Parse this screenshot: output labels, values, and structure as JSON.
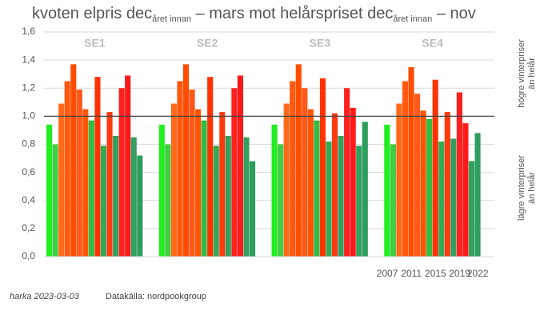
{
  "chart_data": {
    "type": "grouped-bar",
    "title": [
      "kvoten elpris dec",
      "året innan",
      " – mars mot helårspriset dec",
      "året innan",
      " – nov"
    ],
    "groups": [
      "SE1",
      "SE2",
      "SE3",
      "SE4"
    ],
    "x_labels": [
      "2007",
      null,
      null,
      null,
      "2011",
      null,
      null,
      null,
      "2015",
      null,
      null,
      null,
      "2019",
      null,
      null,
      "2022"
    ],
    "colors": [
      "#22ee22",
      "#44cc44",
      "#ff6a1a",
      "#ff5a10",
      "#ff4d00",
      "#ff5a1a",
      "#ff5500",
      "#33bb44",
      "#ff3300",
      "#33aa55",
      "#ff3a10",
      "#33a060",
      "#ff2020",
      "#ff1a1a",
      "#33a060",
      "#2e9e5e"
    ],
    "series": [
      {
        "name": "SE1",
        "values": [
          0.94,
          0.8,
          1.09,
          1.25,
          1.37,
          1.19,
          1.05,
          0.97,
          1.28,
          0.79,
          1.03,
          0.86,
          1.2,
          1.29,
          0.85,
          0.72
        ]
      },
      {
        "name": "SE2",
        "values": [
          0.94,
          0.8,
          1.09,
          1.25,
          1.37,
          1.19,
          1.05,
          0.97,
          1.28,
          0.79,
          1.03,
          0.86,
          1.2,
          1.29,
          0.85,
          0.68
        ]
      },
      {
        "name": "SE3",
        "values": [
          0.94,
          0.8,
          1.09,
          1.25,
          1.37,
          1.2,
          1.05,
          0.97,
          1.27,
          0.82,
          1.02,
          0.86,
          1.2,
          1.06,
          0.79,
          0.96
        ]
      },
      {
        "name": "SE4",
        "values": [
          0.94,
          0.8,
          1.09,
          1.25,
          1.35,
          1.16,
          1.04,
          0.98,
          1.26,
          0.82,
          1.03,
          0.84,
          1.17,
          0.95,
          0.68,
          0.88
        ]
      }
    ],
    "ylim": [
      0,
      1.6
    ],
    "yticks": [
      {
        "value": 0,
        "label": "0,0"
      },
      {
        "value": 0.2,
        "label": "0,2"
      },
      {
        "value": 0.4,
        "label": "0,4"
      },
      {
        "value": 0.6,
        "label": "0,6"
      },
      {
        "value": 0.8,
        "label": "0,8"
      },
      {
        "value": 1,
        "label": "1,0"
      },
      {
        "value": 1.2,
        "label": "1,2"
      },
      {
        "value": 1.4,
        "label": "1,4"
      },
      {
        "value": 1.6,
        "label": "1,6"
      }
    ],
    "reference_line": 1,
    "grid": true,
    "side_labels": [
      [
        "högre vinterpriser",
        "än helår"
      ],
      [
        "lägre vinterpriser",
        "än helår"
      ]
    ],
    "author": "harka 2023-03-03",
    "source": "Datakälla: nordpookgroup"
  }
}
